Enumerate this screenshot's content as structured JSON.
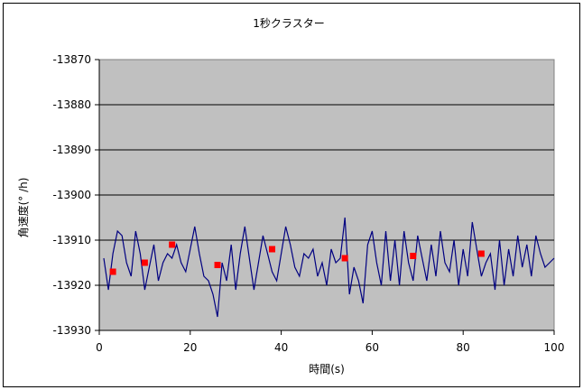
{
  "chart_data": {
    "type": "line",
    "title": "1秒クラスター",
    "xlabel": "時間(s)",
    "ylabel": "角速度(° /h)",
    "xlim": [
      0,
      100
    ],
    "ylim": [
      -13930,
      -13870
    ],
    "x_ticks": [
      "0",
      "20",
      "40",
      "60",
      "80",
      "100"
    ],
    "y_ticks": [
      "-13870",
      "-13880",
      "-13890",
      "-13900",
      "-13910",
      "-13920",
      "-13930"
    ],
    "grid": "horizontal",
    "colors": {
      "plot_bg": "#c0c0c0",
      "line": "#000080",
      "marker": "#ff0000",
      "grid": "#000000"
    },
    "series": [
      {
        "type": "line",
        "x": [
          1,
          2,
          3,
          4,
          5,
          6,
          7,
          8,
          9,
          10,
          11,
          12,
          13,
          14,
          15,
          16,
          17,
          18,
          19,
          20,
          21,
          22,
          23,
          24,
          25,
          26,
          27,
          28,
          29,
          30,
          31,
          32,
          33,
          34,
          35,
          36,
          37,
          38,
          39,
          40,
          41,
          42,
          43,
          44,
          45,
          46,
          47,
          48,
          49,
          50,
          51,
          52,
          53,
          54,
          55,
          56,
          57,
          58,
          59,
          60,
          61,
          62,
          63,
          64,
          65,
          66,
          67,
          68,
          69,
          70,
          71,
          72,
          73,
          74,
          75,
          76,
          77,
          78,
          79,
          80,
          81,
          82,
          83,
          84,
          85,
          86,
          87,
          88,
          89,
          90,
          91,
          92,
          93,
          94,
          95,
          96,
          97,
          98,
          99,
          100
        ],
        "y": [
          -13914,
          -13921,
          -13913,
          -13908,
          -13909,
          -13915,
          -13918,
          -13908,
          -13913,
          -13921,
          -13916,
          -13911,
          -13919,
          -13915,
          -13913,
          -13914,
          -13911,
          -13915,
          -13917,
          -13912,
          -13907,
          -13913,
          -13918,
          -13919,
          -13922,
          -13927,
          -13915,
          -13919,
          -13911,
          -13921,
          -13913,
          -13907,
          -13914,
          -13921,
          -13915,
          -13909,
          -13913,
          -13917,
          -13919,
          -13913,
          -13907,
          -13911,
          -13916,
          -13918,
          -13913,
          -13914,
          -13912,
          -13918,
          -13915,
          -13920,
          -13912,
          -13915,
          -13914,
          -13905,
          -13922,
          -13916,
          -13919,
          -13924,
          -13911,
          -13908,
          -13915,
          -13920,
          -13908,
          -13919,
          -13910,
          -13920,
          -13908,
          -13915,
          -13919,
          -13909,
          -13914,
          -13919,
          -13911,
          -13918,
          -13908,
          -13915,
          -13917,
          -13910,
          -13920,
          -13912,
          -13918,
          -13906,
          -13912,
          -13918,
          -13915,
          -13913,
          -13921,
          -13910,
          -13920,
          -13912,
          -13918,
          -13909,
          -13916,
          -13911,
          -13918,
          -13909,
          -13913,
          -13916,
          -13915,
          -13914
        ]
      },
      {
        "type": "scatter",
        "x": [
          3,
          10,
          16,
          26,
          38,
          54,
          69,
          84
        ],
        "y": [
          -13917,
          -13915,
          -13911,
          -13915.5,
          -13912,
          -13914,
          -13913.5,
          -13913
        ]
      }
    ]
  }
}
